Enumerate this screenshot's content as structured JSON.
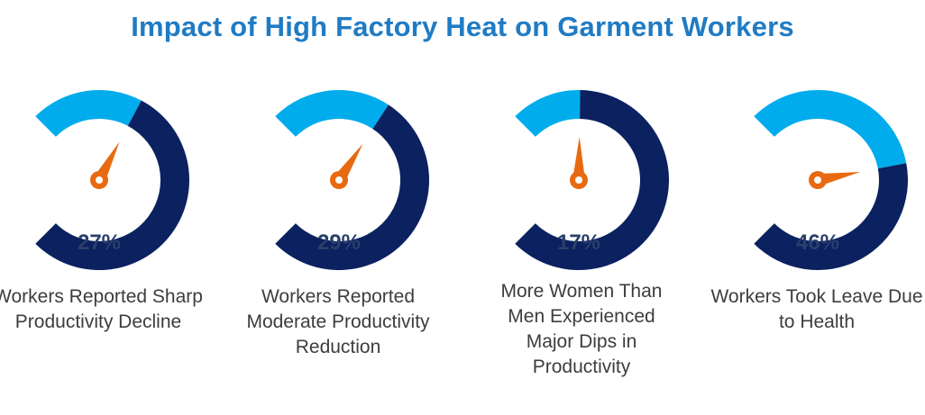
{
  "title": "Impact of High Factory Heat on Garment Workers",
  "colors": {
    "title": "#1f7bc4",
    "filled": "#00acec",
    "remaining": "#0b2160",
    "needle": "#e86a10",
    "value_text": "#2a3f6b"
  },
  "chart_data": {
    "type": "gauge",
    "title": "Impact of High Factory Heat on Garment Workers",
    "unit": "%",
    "range": [
      0,
      100
    ],
    "gauges": [
      {
        "value": 27,
        "label": "27%",
        "description": "Workers Reported Sharp Productivity Decline"
      },
      {
        "value": 29,
        "label": "29%",
        "description": "Workers Reported Moderate Productivity Reduction"
      },
      {
        "value": 17,
        "label": "17%",
        "description": "More Women Than Men Experienced Major Dips in Productivity"
      },
      {
        "value": 46,
        "label": "46%",
        "description": "Workers Took Leave Due to Health"
      }
    ]
  }
}
